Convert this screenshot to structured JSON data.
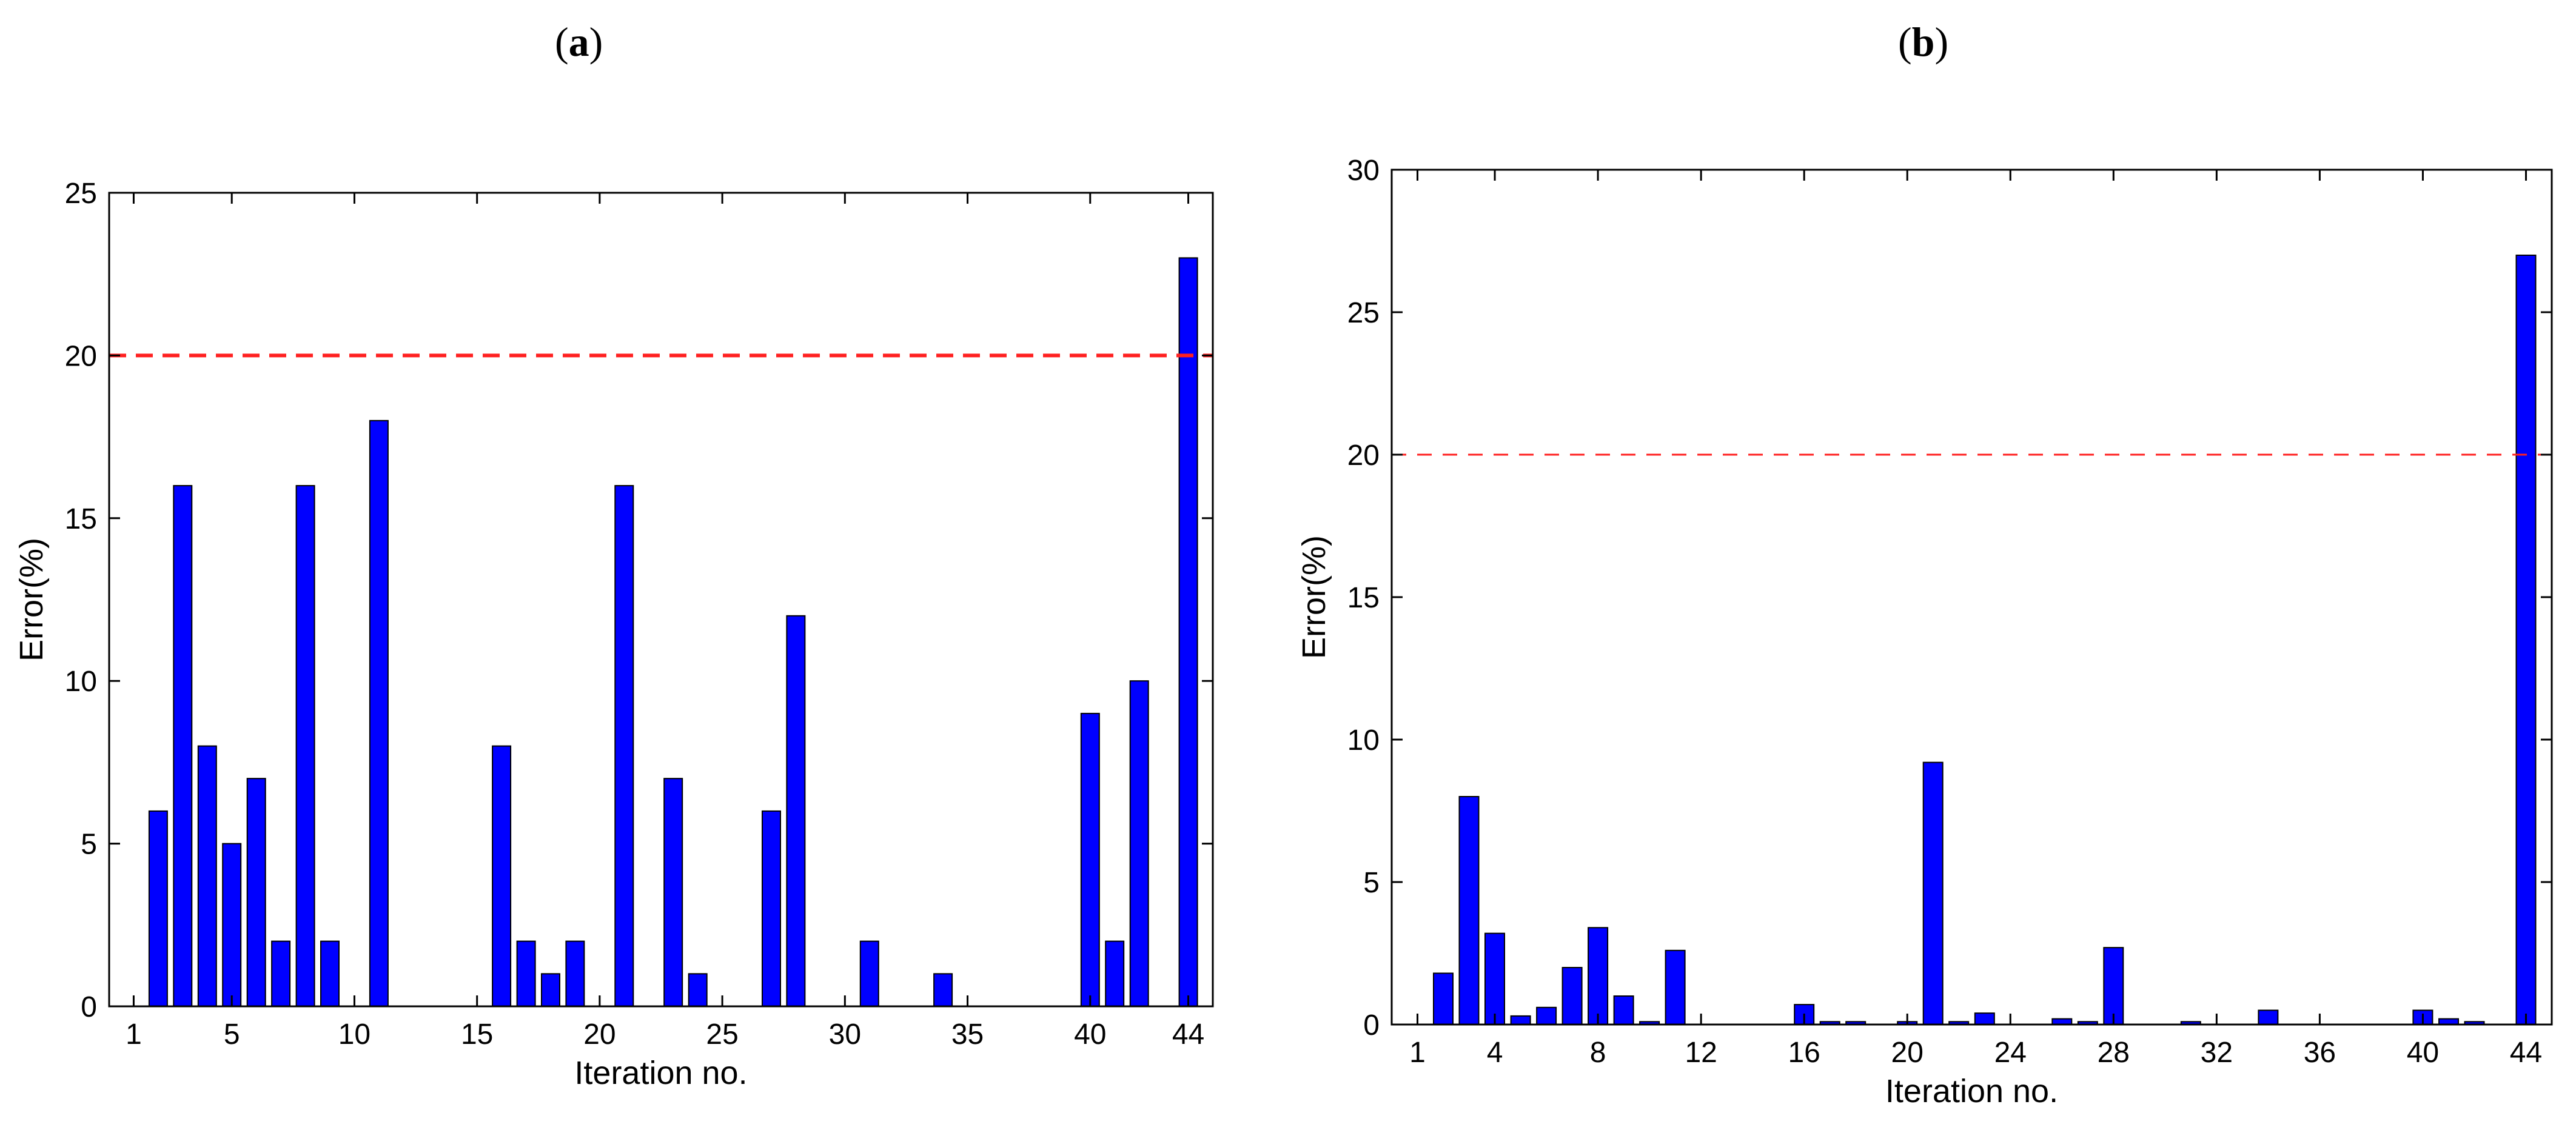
{
  "panels": [
    {
      "label_open": "(",
      "label_letter": "a",
      "label_close": ")"
    },
    {
      "label_open": "(",
      "label_letter": "b",
      "label_close": ")"
    }
  ],
  "colors": {
    "bar": "#0000ff",
    "threshold": "#ff2020",
    "axis": "#000000"
  },
  "chart_data": [
    {
      "type": "bar",
      "xlabel": "Iteration no.",
      "ylabel": "Error(%)",
      "xlim": [
        0,
        45
      ],
      "ylim": [
        0,
        25
      ],
      "xticks": [
        1,
        5,
        10,
        15,
        20,
        25,
        30,
        35,
        40,
        44
      ],
      "yticks": [
        0,
        5,
        10,
        15,
        20,
        25
      ],
      "threshold": 20,
      "grid": false,
      "x": [
        2,
        3,
        4,
        5,
        6,
        7,
        8,
        9,
        11,
        16,
        17,
        18,
        19,
        21,
        23,
        24,
        27,
        28,
        31,
        34,
        40,
        41,
        42,
        44
      ],
      "values": [
        6,
        16,
        8,
        5,
        7,
        2,
        16,
        2,
        18,
        8,
        2,
        1,
        2,
        16,
        7,
        1,
        6,
        12,
        2,
        1,
        9,
        2,
        10,
        23
      ]
    },
    {
      "type": "bar",
      "xlabel": "Iteration no.",
      "ylabel": "Error(%)",
      "xlim": [
        0,
        45
      ],
      "ylim": [
        0,
        30
      ],
      "xticks": [
        1,
        4,
        8,
        12,
        16,
        20,
        24,
        28,
        32,
        36,
        40,
        44
      ],
      "yticks": [
        0,
        5,
        10,
        15,
        20,
        25,
        30
      ],
      "threshold": 20,
      "grid": false,
      "x": [
        2,
        3,
        4,
        5,
        6,
        7,
        8,
        9,
        10,
        11,
        16,
        17,
        18,
        20,
        21,
        22,
        23,
        26,
        27,
        28,
        31,
        34,
        40,
        41,
        42,
        44
      ],
      "values": [
        1.8,
        8,
        3.2,
        0.3,
        0.6,
        2,
        3.4,
        1,
        0.1,
        2.6,
        0.7,
        0.1,
        0.1,
        0.1,
        9.2,
        0.1,
        0.4,
        0.2,
        0.1,
        2.7,
        0.1,
        0.5,
        0.5,
        0.2,
        0.1,
        27
      ]
    }
  ]
}
